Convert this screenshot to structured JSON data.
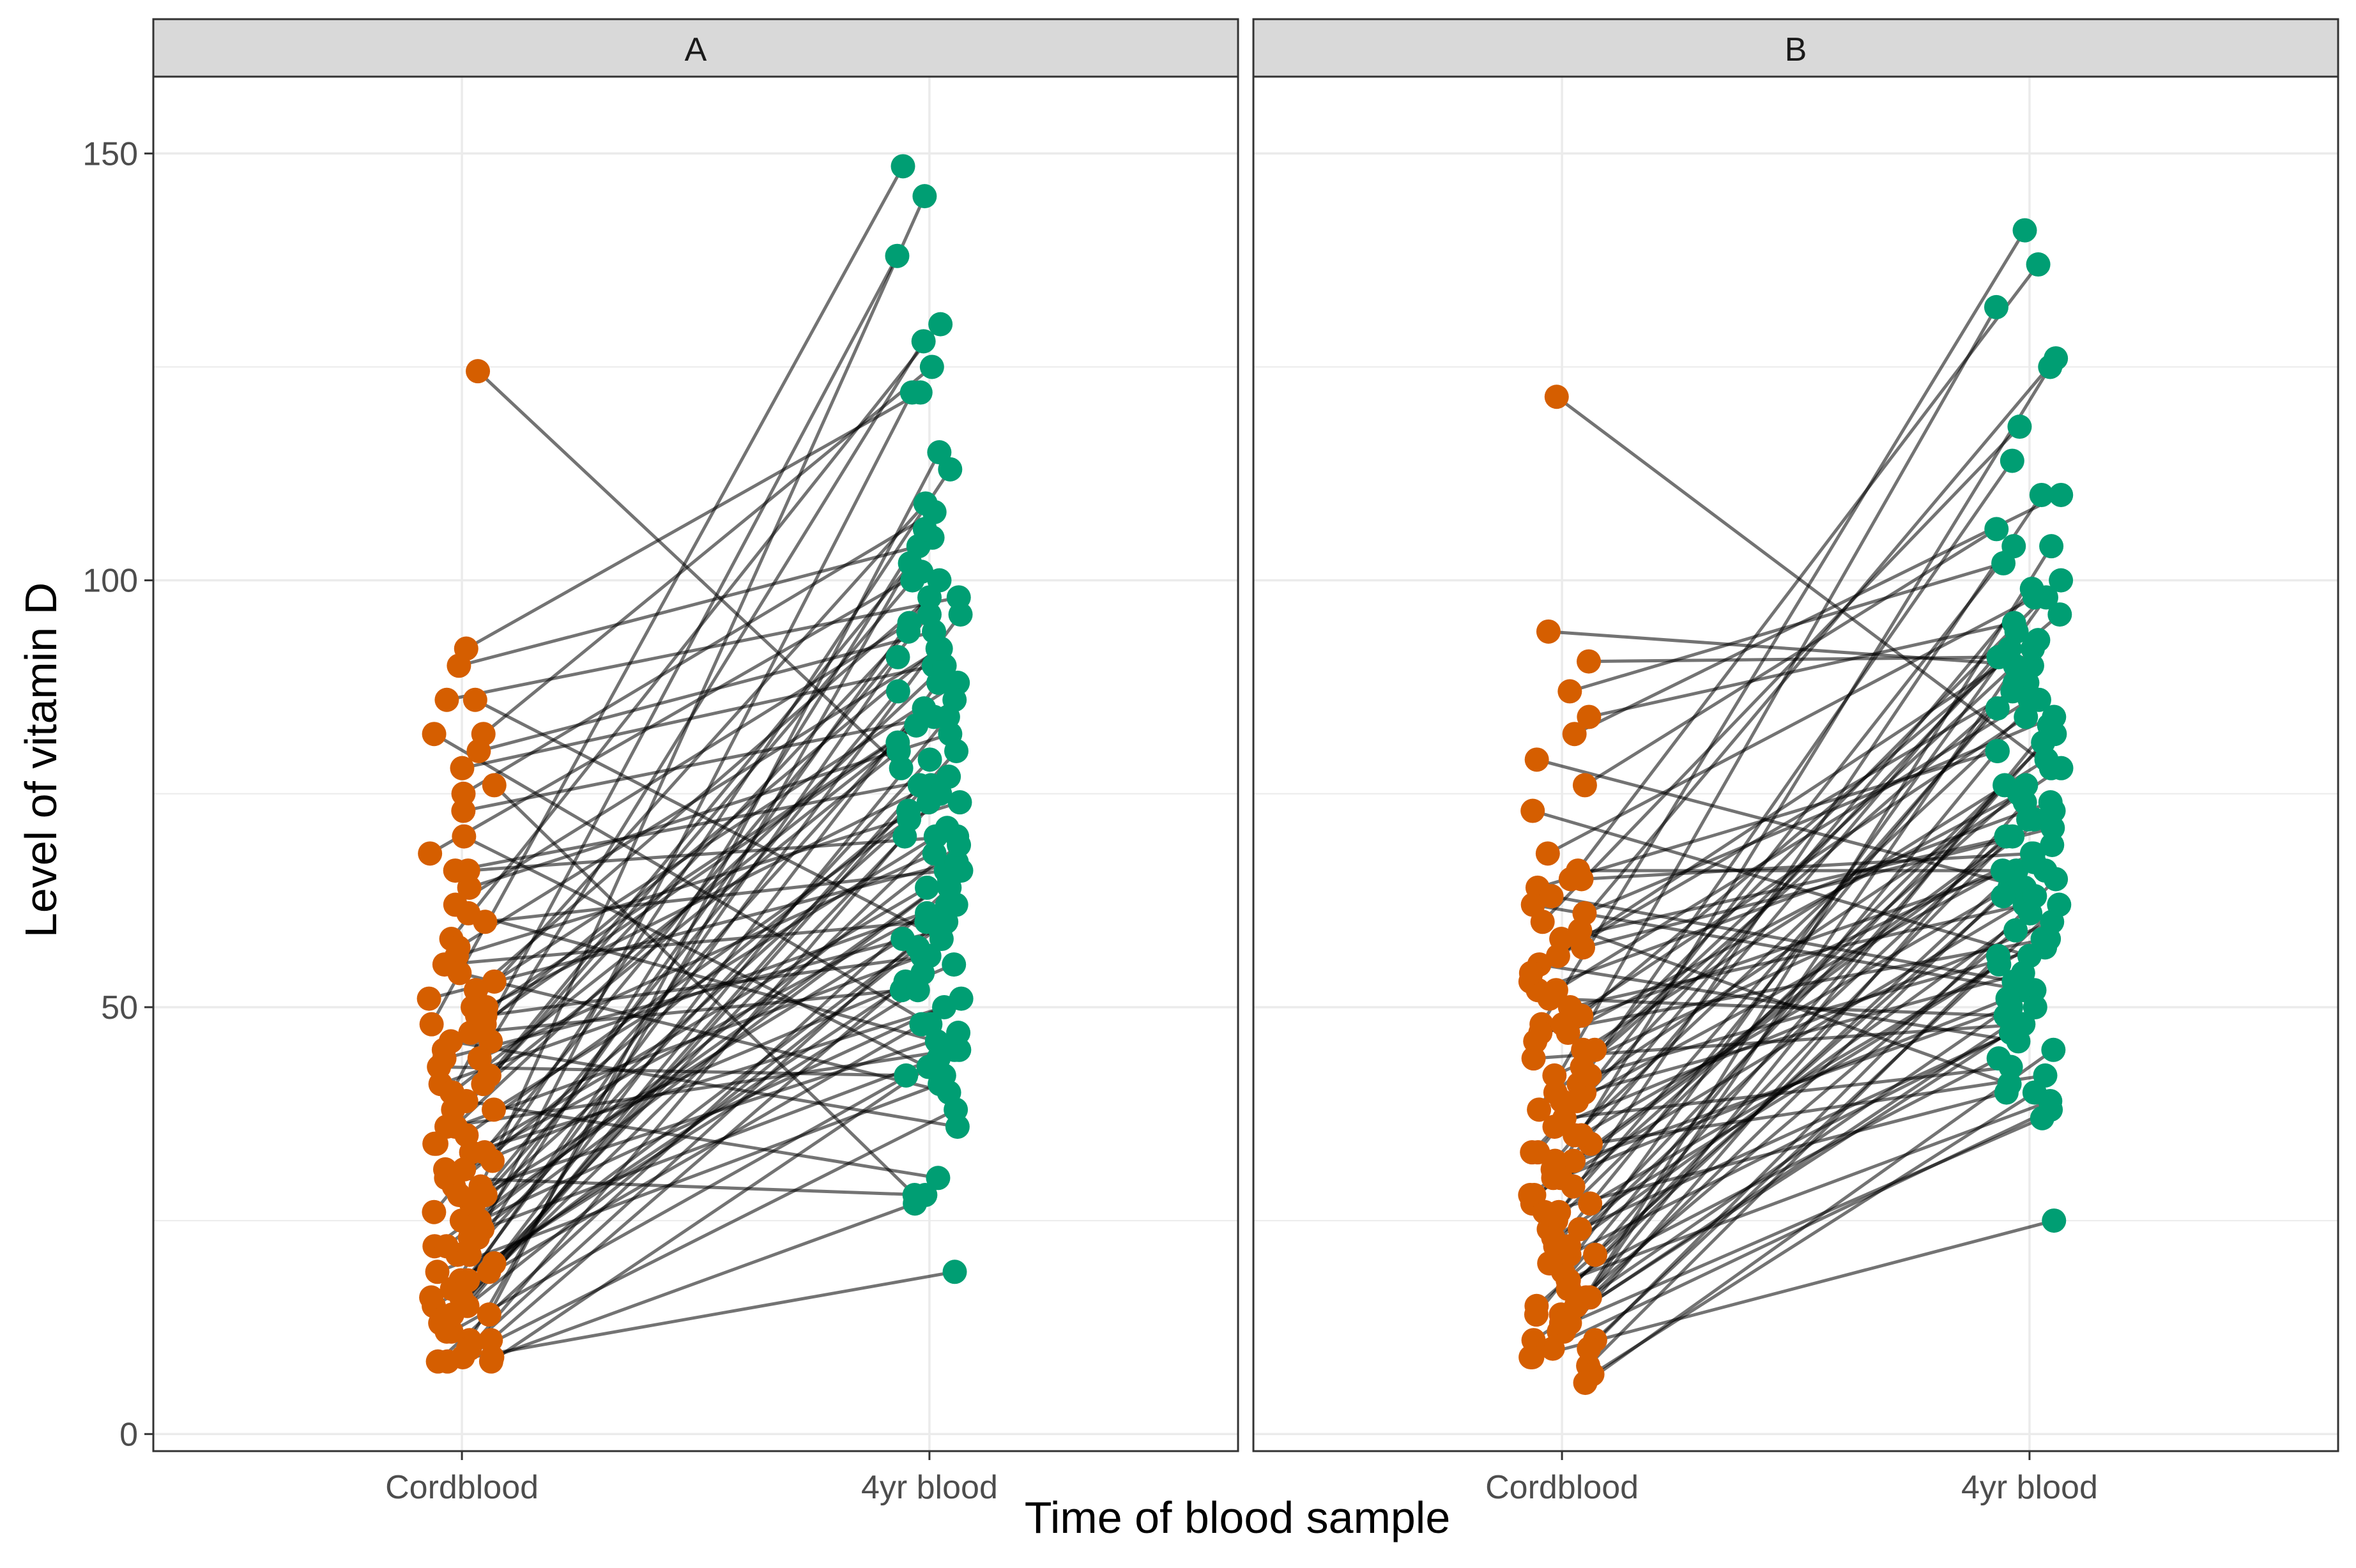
{
  "chart_data": {
    "type": "line",
    "subtype": "paired-slope-faceted",
    "xlabel": "Time of blood sample",
    "ylabel": "Level of vitamin D",
    "categories": [
      "Cordblood",
      "4yr blood"
    ],
    "y_ticks": [
      0,
      50,
      100,
      150
    ],
    "ylim": [
      -2,
      159
    ],
    "grid": true,
    "colors": {
      "cordblood": "#D55E00",
      "fouryr": "#009E73",
      "line": "#000000",
      "strip_fill": "#D9D9D9",
      "panel_border": "#333333",
      "grid": "#EBEBEB"
    },
    "facets": [
      {
        "label": "A",
        "pairs": [
          [
            124.5,
            78
          ],
          [
            92,
            122
          ],
          [
            90,
            104
          ],
          [
            86,
            98
          ],
          [
            82,
            125
          ],
          [
            80,
            94
          ],
          [
            78,
            90
          ],
          [
            75,
            108
          ],
          [
            73,
            84
          ],
          [
            68,
            101
          ],
          [
            66,
            70
          ],
          [
            64,
            82
          ],
          [
            62,
            95
          ],
          [
            60,
            66
          ],
          [
            58,
            130
          ],
          [
            56,
            74
          ],
          [
            55,
            60
          ],
          [
            53,
            88
          ],
          [
            52,
            98
          ],
          [
            50,
            76
          ],
          [
            49,
            56
          ],
          [
            48,
            148.5
          ],
          [
            47,
            52
          ],
          [
            46,
            128
          ],
          [
            45,
            86
          ],
          [
            44,
            68
          ],
          [
            43,
            42
          ],
          [
            42,
            105
          ],
          [
            41,
            62
          ],
          [
            40,
            138
          ],
          [
            39,
            30
          ],
          [
            38,
            80
          ],
          [
            36,
            56
          ],
          [
            35,
            72
          ],
          [
            34,
            90
          ],
          [
            33,
            50
          ],
          [
            32,
            113
          ],
          [
            31,
            64
          ],
          [
            30,
            28
          ],
          [
            29,
            145
          ],
          [
            28,
            85
          ],
          [
            27,
            58
          ],
          [
            26,
            96
          ],
          [
            25,
            74
          ],
          [
            24,
            45
          ],
          [
            23,
            122
          ],
          [
            22,
            66
          ],
          [
            21,
            100
          ],
          [
            20,
            60
          ],
          [
            19,
            88
          ],
          [
            18,
            54
          ],
          [
            17,
            106
          ],
          [
            16,
            70
          ],
          [
            15,
            48
          ],
          [
            14,
            115
          ],
          [
            13,
            80
          ],
          [
            12,
            44
          ],
          [
            11,
            102
          ],
          [
            10,
            62
          ],
          [
            9,
            38
          ],
          [
            8.5,
            19
          ],
          [
            8.5,
            43
          ],
          [
            9,
            27
          ],
          [
            8.5,
            64
          ],
          [
            86,
            58
          ],
          [
            82,
            48
          ],
          [
            76,
            28
          ],
          [
            70,
            42
          ],
          [
            66,
            77
          ],
          [
            61,
            46
          ],
          [
            57,
            92
          ],
          [
            54,
            40
          ],
          [
            51,
            67
          ],
          [
            49,
            83
          ],
          [
            46,
            36
          ],
          [
            44,
            59
          ],
          [
            41,
            94
          ],
          [
            38,
            70
          ],
          [
            36,
            45
          ],
          [
            34,
            100
          ],
          [
            31,
            55
          ],
          [
            29,
            73
          ],
          [
            27,
            87
          ],
          [
            25,
            51
          ],
          [
            23,
            65
          ],
          [
            21,
            79
          ],
          [
            19,
            41
          ],
          [
            17,
            96
          ],
          [
            15,
            57
          ],
          [
            13,
            71
          ],
          [
            12,
            84
          ],
          [
            11,
            53
          ],
          [
            10,
            75
          ],
          [
            50,
            109
          ],
          [
            48,
            92
          ],
          [
            40,
            81
          ],
          [
            33,
            61
          ],
          [
            28,
            47
          ],
          [
            22,
            69
          ],
          [
            18,
            91
          ],
          [
            16,
            52
          ],
          [
            14,
            76
          ]
        ]
      },
      {
        "label": "B",
        "pairs": [
          [
            121.5,
            78
          ],
          [
            94,
            90
          ],
          [
            90.5,
            91
          ],
          [
            87,
            102
          ],
          [
            84,
            95
          ],
          [
            82,
            110
          ],
          [
            79,
            64
          ],
          [
            76,
            106
          ],
          [
            73,
            56
          ],
          [
            68,
            98
          ],
          [
            66,
            66
          ],
          [
            65,
            137
          ],
          [
            64,
            80
          ],
          [
            62,
            52
          ],
          [
            60,
            118
          ],
          [
            58,
            70
          ],
          [
            56,
            88
          ],
          [
            55,
            46
          ],
          [
            53,
            126
          ],
          [
            52,
            74
          ],
          [
            50,
            62
          ],
          [
            49,
            96
          ],
          [
            48,
            141
          ],
          [
            47,
            58
          ],
          [
            46,
            84
          ],
          [
            45,
            100
          ],
          [
            44,
            48
          ],
          [
            43,
            92
          ],
          [
            42,
            68
          ],
          [
            41,
            114
          ],
          [
            40,
            54
          ],
          [
            39,
            78
          ],
          [
            38,
            132
          ],
          [
            36,
            60
          ],
          [
            35,
            86
          ],
          [
            34,
            42
          ],
          [
            33,
            104
          ],
          [
            32,
            72
          ],
          [
            31,
            50
          ],
          [
            30,
            125
          ],
          [
            29,
            76
          ],
          [
            28,
            63
          ],
          [
            27,
            94
          ],
          [
            26,
            40
          ],
          [
            25,
            82
          ],
          [
            24,
            110
          ],
          [
            23,
            58
          ],
          [
            22,
            88
          ],
          [
            21,
            47
          ],
          [
            20,
            70
          ],
          [
            19,
            98
          ],
          [
            18,
            44
          ],
          [
            17,
            66
          ],
          [
            16,
            90
          ],
          [
            15,
            52
          ],
          [
            14,
            80
          ],
          [
            13,
            37
          ],
          [
            12,
            104
          ],
          [
            11,
            62
          ],
          [
            10,
            74
          ],
          [
            9,
            25
          ],
          [
            8,
            56
          ],
          [
            7,
            40
          ],
          [
            6,
            45
          ],
          [
            65,
            68
          ],
          [
            63,
            53
          ],
          [
            61,
            84
          ],
          [
            59,
            41
          ],
          [
            57,
            71
          ],
          [
            54,
            93
          ],
          [
            51,
            49
          ],
          [
            48,
            67
          ],
          [
            45,
            79
          ],
          [
            42,
            57
          ],
          [
            40,
            87
          ],
          [
            37,
            43
          ],
          [
            35,
            64
          ],
          [
            32,
            99
          ],
          [
            30,
            51
          ],
          [
            28,
            73
          ],
          [
            26,
            85
          ],
          [
            24,
            47
          ],
          [
            22,
            61
          ],
          [
            20,
            76
          ],
          [
            18,
            39
          ],
          [
            16,
            69
          ],
          [
            14,
            59
          ],
          [
            12,
            83
          ],
          [
            11,
            48
          ],
          [
            10,
            65
          ],
          [
            52,
            86
          ],
          [
            47,
            75
          ],
          [
            39,
            66
          ],
          [
            33,
            92
          ],
          [
            27,
            55
          ],
          [
            21,
            81
          ],
          [
            17,
            72
          ],
          [
            15,
            63
          ],
          [
            13,
            50
          ],
          [
            9,
            38
          ]
        ]
      }
    ]
  }
}
